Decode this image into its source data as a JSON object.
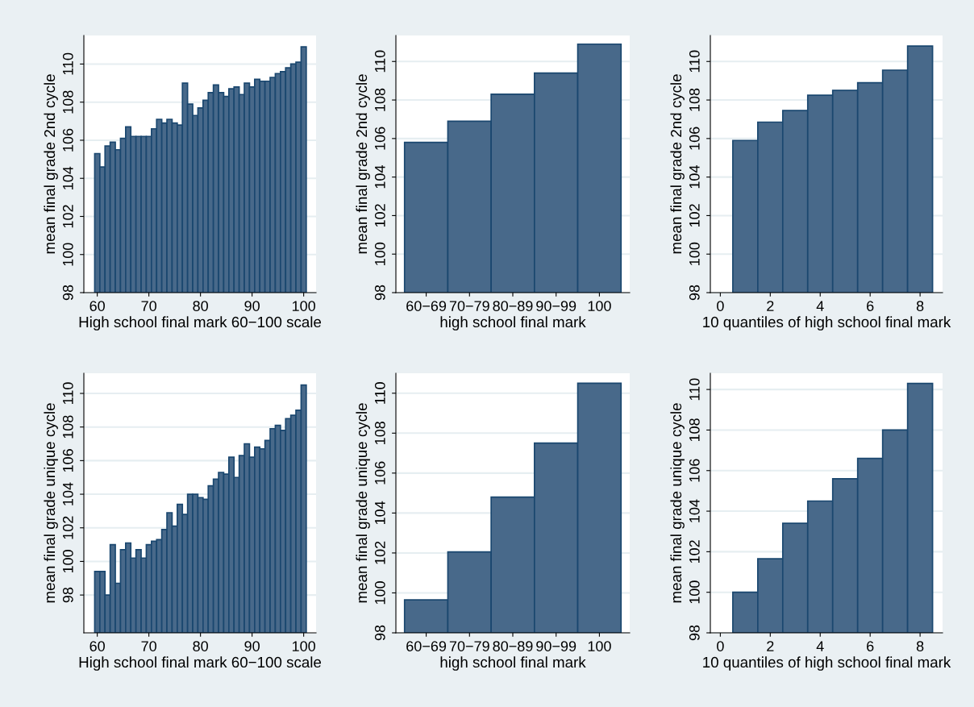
{
  "chart_data": [
    {
      "type": "bar",
      "xlabel": "High school final mark 60−100 scale",
      "ylabel": "mean final grade 2nd cycle",
      "color": "#48698a",
      "grid": "y",
      "x": [
        60,
        61,
        62,
        63,
        64,
        65,
        66,
        67,
        68,
        69,
        70,
        71,
        72,
        73,
        74,
        75,
        76,
        77,
        78,
        79,
        80,
        81,
        82,
        83,
        84,
        85,
        86,
        87,
        88,
        89,
        90,
        91,
        92,
        93,
        94,
        95,
        96,
        97,
        98,
        99,
        100
      ],
      "values": [
        105.3,
        104.6,
        105.7,
        105.9,
        105.5,
        106.1,
        106.7,
        106.2,
        106.2,
        106.2,
        106.2,
        106.6,
        107.1,
        106.9,
        107.1,
        106.9,
        106.8,
        109.0,
        107.9,
        107.3,
        107.7,
        108.1,
        108.5,
        108.9,
        108.5,
        108.3,
        108.7,
        108.8,
        108.4,
        109.0,
        108.8,
        109.2,
        109.1,
        109.1,
        109.3,
        109.5,
        109.6,
        109.8,
        110.0,
        110.1,
        110.9
      ],
      "xlim": [
        57.4,
        102.4
      ],
      "xticks": [
        60,
        70,
        80,
        90,
        100
      ],
      "ylim": [
        98,
        111.5
      ],
      "yticks": [
        98,
        100,
        102,
        104,
        106,
        108,
        110
      ]
    },
    {
      "type": "bar",
      "xlabel": "high school final mark",
      "ylabel": "mean final grade 2nd cycle",
      "color": "#48698a",
      "grid": "y",
      "categories": [
        "60−69",
        "70−79",
        "80−89",
        "90−99",
        "100"
      ],
      "values": [
        105.8,
        106.9,
        108.3,
        109.4,
        110.9
      ],
      "ylim": [
        98,
        111.35
      ],
      "yticks": [
        98,
        100,
        102,
        104,
        106,
        108,
        110
      ]
    },
    {
      "type": "bar",
      "xlabel": "10 quantiles of high school final mark",
      "ylabel": "mean final grade 2nd cycle",
      "color": "#48698a",
      "grid": "y",
      "x": [
        1,
        2,
        3,
        4,
        5,
        6,
        7,
        8
      ],
      "values": [
        105.9,
        106.85,
        107.45,
        108.25,
        108.5,
        108.9,
        109.55,
        110.8
      ],
      "xlim": [
        -0.4,
        8.9
      ],
      "xticks": [
        0,
        2,
        4,
        6,
        8
      ],
      "ylim": [
        98,
        111.35
      ],
      "yticks": [
        98,
        100,
        102,
        104,
        106,
        108,
        110
      ]
    },
    {
      "type": "bar",
      "xlabel": "High school final mark 60−100 scale",
      "ylabel": "mean final grade unique cycle",
      "color": "#48698a",
      "grid": "y",
      "x": [
        60,
        61,
        62,
        63,
        64,
        65,
        66,
        67,
        68,
        69,
        70,
        71,
        72,
        73,
        74,
        75,
        76,
        77,
        78,
        79,
        80,
        81,
        82,
        83,
        84,
        85,
        86,
        87,
        88,
        89,
        90,
        91,
        92,
        93,
        94,
        95,
        96,
        97,
        98,
        99,
        100
      ],
      "values": [
        99.4,
        99.4,
        98.0,
        101.0,
        98.7,
        100.7,
        101.1,
        100.2,
        100.7,
        100.2,
        101.0,
        101.2,
        101.3,
        101.9,
        102.9,
        102.1,
        103.4,
        102.8,
        104.0,
        104.0,
        103.8,
        103.7,
        104.5,
        104.9,
        105.3,
        105.2,
        106.2,
        105.0,
        106.3,
        107.0,
        106.2,
        106.8,
        106.7,
        107.2,
        107.9,
        108.1,
        107.8,
        108.5,
        108.7,
        109.0,
        110.5
      ],
      "xlim": [
        57.4,
        102.4
      ],
      "xticks": [
        60,
        70,
        80,
        90,
        100
      ],
      "ylim": [
        95.75,
        111.2
      ],
      "yticks": [
        98,
        100,
        102,
        104,
        106,
        108,
        110
      ]
    },
    {
      "type": "bar",
      "xlabel": "high school final mark",
      "ylabel": "mean final grade unique cycle",
      "color": "#48698a",
      "grid": "y",
      "categories": [
        "60−69",
        "70−79",
        "80−89",
        "90−99",
        "100"
      ],
      "values": [
        99.65,
        102.05,
        104.8,
        107.5,
        110.5
      ],
      "ylim": [
        98,
        111.0
      ],
      "yticks": [
        98,
        100,
        102,
        104,
        106,
        108,
        110
      ]
    },
    {
      "type": "bar",
      "xlabel": "10 quantiles of high school final mark",
      "ylabel": "mean final grade unique cycle",
      "color": "#48698a",
      "grid": "y",
      "x": [
        1,
        2,
        3,
        4,
        5,
        6,
        7,
        8
      ],
      "values": [
        100.0,
        101.65,
        103.4,
        104.5,
        105.6,
        106.6,
        108.0,
        110.3
      ],
      "xlim": [
        -0.4,
        8.9
      ],
      "xticks": [
        0,
        2,
        4,
        6,
        8
      ],
      "ylim": [
        98,
        110.8
      ],
      "yticks": [
        98,
        100,
        102,
        104,
        106,
        108,
        110
      ]
    }
  ]
}
